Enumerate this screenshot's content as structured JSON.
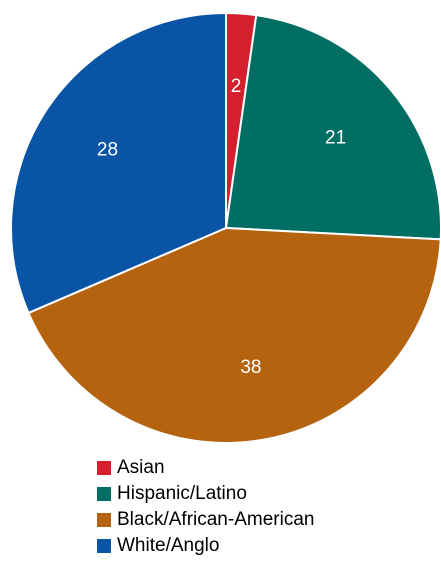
{
  "chart_data": {
    "type": "pie",
    "categories": [
      "Asian",
      "Hispanic/Latino",
      "Black/African-American",
      "White/Anglo"
    ],
    "values": [
      2,
      21,
      38,
      28
    ],
    "data_labels": [
      "2",
      "21",
      "38",
      "28"
    ],
    "colors": [
      "#d4202e",
      "#006e63",
      "#b5630f",
      "#0a54a6"
    ],
    "start": "12 o'clock",
    "direction": "clockwise",
    "legend_position": "bottom",
    "title": ""
  }
}
